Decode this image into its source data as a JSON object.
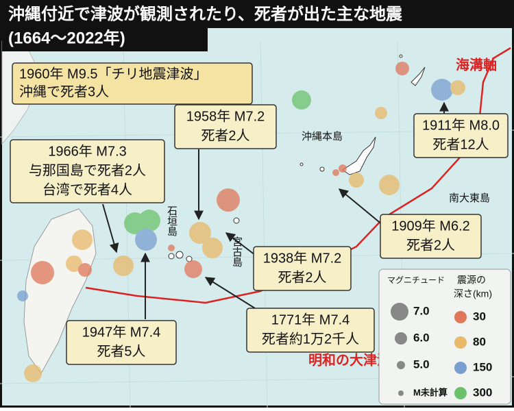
{
  "title": {
    "line1": "沖縄付近で津波が観測されたり、死者が出た主な地震",
    "line2": "(1664〜2022年)"
  },
  "callouts": [
    {
      "lines": [
        "1960年 M9.5「チリ地震津波」",
        "沖縄で死者3人"
      ]
    },
    {
      "lines": [
        "1958年 M7.2",
        "死者2人"
      ]
    },
    {
      "lines": [
        "1966年 M7.3",
        "与那国島で死者2人",
        "台湾で死者4人"
      ]
    },
    {
      "lines": [
        "1911年 M8.0",
        "死者12人"
      ]
    },
    {
      "lines": [
        "1909年 M6.2",
        "死者2人"
      ]
    },
    {
      "lines": [
        "1938年 M7.2",
        "死者2人"
      ]
    },
    {
      "lines": [
        "1771年 M7.4",
        "死者約1万2千人"
      ]
    },
    {
      "lines": [
        "1947年 M7.4",
        "死者5人"
      ]
    }
  ],
  "tsunami_name": "明和の大津波",
  "trench_label": "海溝軸",
  "places": [
    "沖縄本島",
    "南大東島",
    "石垣島",
    "宮古島"
  ],
  "legend": {
    "magnitude_title": "マグニチュード",
    "magnitudes": [
      "7.0",
      "6.0",
      "5.0",
      "M未計算"
    ],
    "depth_title": [
      "震源の",
      "深さ(km)"
    ],
    "depths": [
      "30",
      "80",
      "150",
      "300"
    ]
  }
}
